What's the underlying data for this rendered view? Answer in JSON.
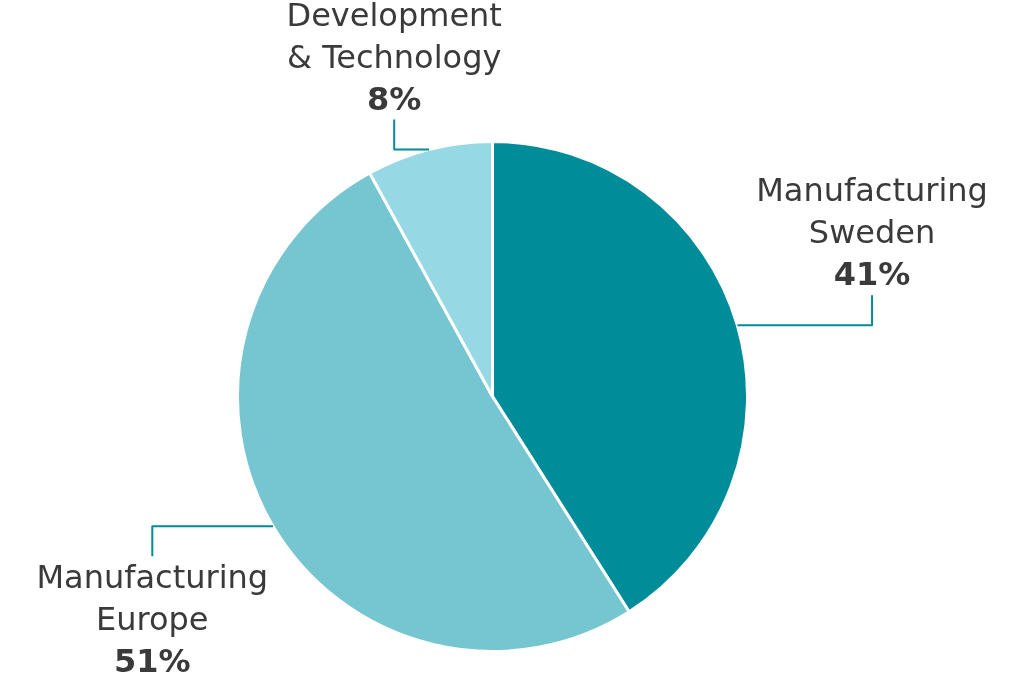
{
  "chart_data": {
    "type": "pie",
    "categories": [
      "Manufacturing Sweden",
      "Manufacturing Europe",
      "Development & Technology"
    ],
    "values": [
      41,
      51,
      8
    ],
    "colors": [
      "#008c99",
      "#75c6d1",
      "#96d9e4"
    ],
    "value_labels": [
      "41%",
      "51%",
      "8%"
    ]
  }
}
